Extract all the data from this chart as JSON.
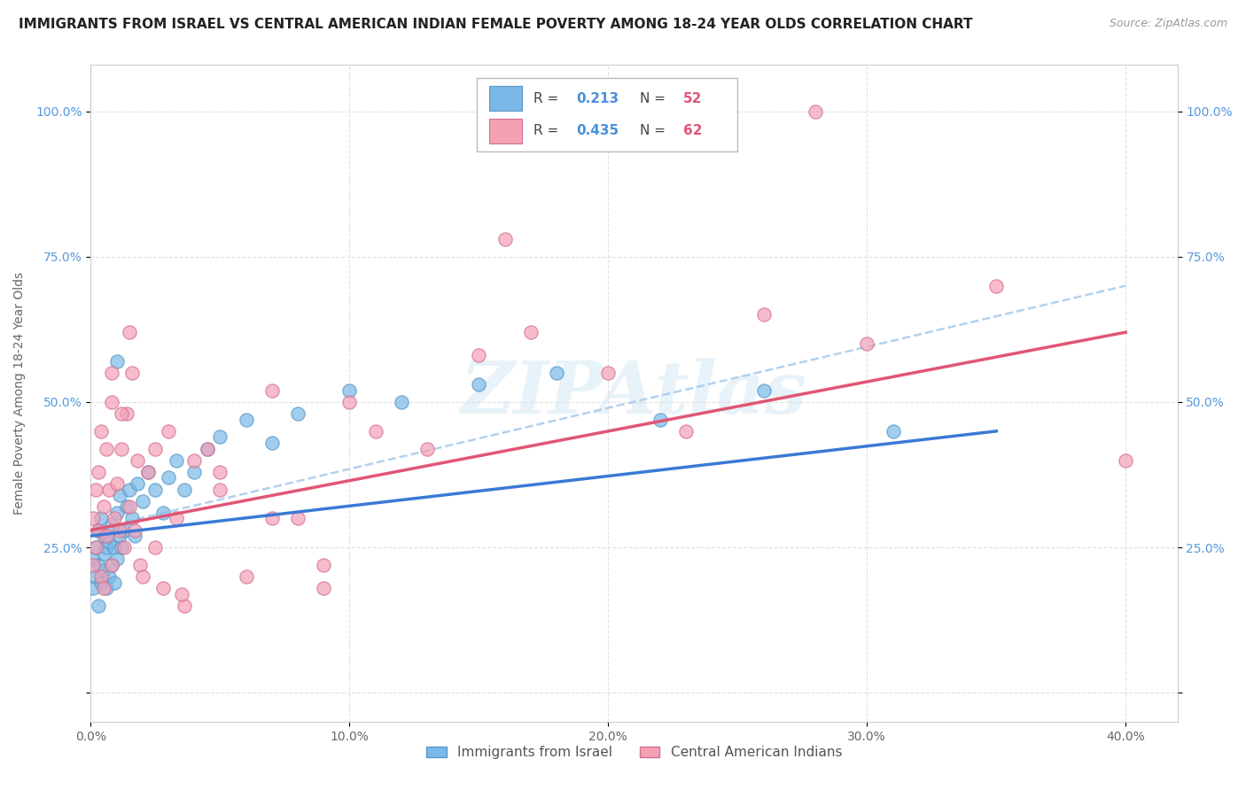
{
  "title": "IMMIGRANTS FROM ISRAEL VS CENTRAL AMERICAN INDIAN FEMALE POVERTY AMONG 18-24 YEAR OLDS CORRELATION CHART",
  "source": "Source: ZipAtlas.com",
  "ylabel": "Female Poverty Among 18-24 Year Olds",
  "xlim": [
    0.0,
    0.42
  ],
  "ylim": [
    -0.05,
    1.08
  ],
  "series1_label": "Immigrants from Israel",
  "series1_color": "#7ab8e8",
  "series1_edge": "#5a98c8",
  "series1_R": 0.213,
  "series1_N": 52,
  "series2_label": "Central American Indians",
  "series2_color": "#f4a0b5",
  "series2_edge": "#d47090",
  "series2_R": 0.435,
  "series2_N": 62,
  "trend1_color": "#3a7ad5",
  "trend2_color": "#e05575",
  "dash_color": "#aaccee",
  "watermark": "ZIPAtlas",
  "background_color": "#ffffff",
  "grid_color": "#e0e0e0",
  "title_fontsize": 11,
  "axis_fontsize": 10,
  "source_fontsize": 9,
  "tick_color_y": "#5599dd",
  "tick_color_x": "#666666"
}
